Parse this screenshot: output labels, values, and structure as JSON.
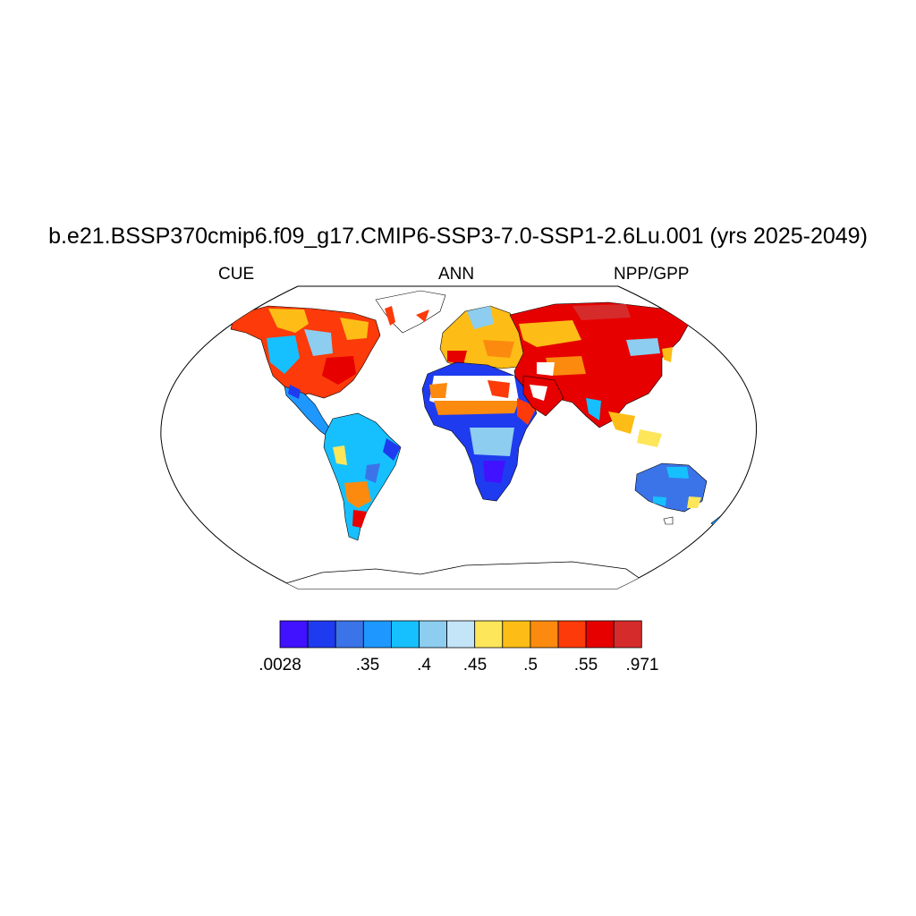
{
  "title": "b.e21.BSSP370cmip6.f09_g17.CMIP6-SSP3-7.0-SSP1-2.6Lu.001 (yrs 2025-2049)",
  "subtitles": {
    "left": "CUE",
    "center": "ANN",
    "right": "NPP/GPP"
  },
  "colorbar": {
    "colors": [
      "#4012ff",
      "#1f3bef",
      "#3b74e8",
      "#1e98ff",
      "#16c0ff",
      "#8ccdf0",
      "#c4e4f8",
      "#fde65a",
      "#fdbd16",
      "#fc8a0e",
      "#fc3a0a",
      "#e60000",
      "#d62b2b"
    ],
    "labels": [
      {
        "text": ".0028",
        "boundary": 0
      },
      {
        "text": ".35",
        "boundary": 2
      },
      {
        "text": ".4",
        "boundary": 3
      },
      {
        "text": ".45",
        "boundary": 4
      },
      {
        "text": ".5",
        "boundary": 5
      },
      {
        "text": ".55",
        "boundary": 6
      },
      {
        "text": ".971",
        "boundary": 7
      }
    ]
  },
  "map": {
    "projection": "robinson",
    "regions": [
      {
        "name": "north-america",
        "color": "#fc3a0a"
      },
      {
        "name": "south-america",
        "color": "#16c0ff"
      },
      {
        "name": "europe",
        "color": "#fdbd16"
      },
      {
        "name": "africa",
        "color": "#1f3bef"
      },
      {
        "name": "asia",
        "color": "#e60000"
      },
      {
        "name": "australia",
        "color": "#3b74e8"
      },
      {
        "name": "greenland",
        "color": "#ffffff"
      },
      {
        "name": "antarctica",
        "color": "#ffffff"
      }
    ]
  }
}
